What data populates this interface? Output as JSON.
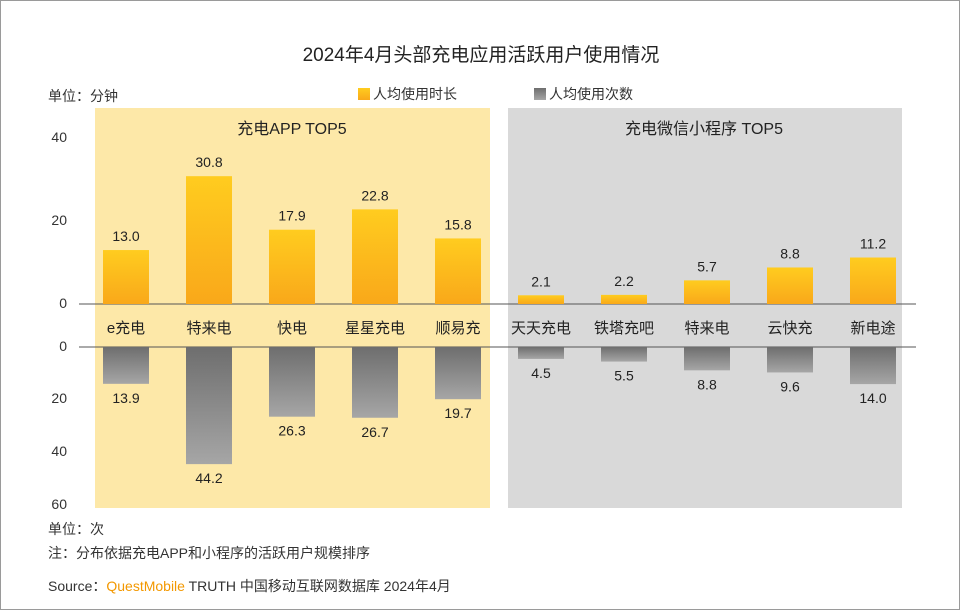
{
  "chart_data": {
    "type": "bar",
    "title": "2024年4月头部充电应用活跃用户使用情况",
    "unit_top": "单位：分钟",
    "unit_bottom": "单位：次",
    "legend": [
      "人均使用时长",
      "人均使用次数"
    ],
    "groups": [
      "充电APP TOP5",
      "充电微信小程序 TOP5"
    ],
    "categories": [
      "e充电",
      "特来电",
      "快电",
      "星星充电",
      "顺易充",
      "天天充电",
      "铁塔充吧",
      "特来电",
      "云快充",
      "新电途"
    ],
    "series": [
      {
        "name": "人均使用时长",
        "values": [
          13.0,
          30.8,
          17.9,
          22.8,
          15.8,
          2.1,
          2.2,
          5.7,
          8.8,
          11.2
        ]
      },
      {
        "name": "人均使用次数",
        "values": [
          13.9,
          44.2,
          26.3,
          26.7,
          19.7,
          4.5,
          5.5,
          8.8,
          9.6,
          14.0
        ]
      }
    ],
    "value_labels_top": [
      "13.0",
      "30.8",
      "17.9",
      "22.8",
      "15.8",
      "2.1",
      "2.2",
      "5.7",
      "8.8",
      "11.2"
    ],
    "value_labels_bottom": [
      "13.9",
      "44.2",
      "26.3",
      "26.7",
      "19.7",
      "4.5",
      "5.5",
      "8.8",
      "9.6",
      "14.0"
    ],
    "ylim_top": [
      0,
      40
    ],
    "ylim_bottom": [
      0,
      60
    ],
    "yticks_top": [
      "40",
      "20",
      "0"
    ],
    "yticks_bottom": [
      "0",
      "20",
      "40",
      "60"
    ],
    "colors": {
      "top_bar": "#FDC11B",
      "bottom_bar": "#8C8C8C",
      "group_app_bg": "#FDE8A8",
      "group_mini_bg": "#D9D9D9",
      "brand": "#F39800"
    }
  },
  "footer": {
    "note": "注：分布依据充电APP和小程序的活跃用户规模排序",
    "source_label": "Source：",
    "source_brand": "QuestMobile",
    "source_rest": " TRUTH 中国移动互联网数据库 2024年4月"
  }
}
